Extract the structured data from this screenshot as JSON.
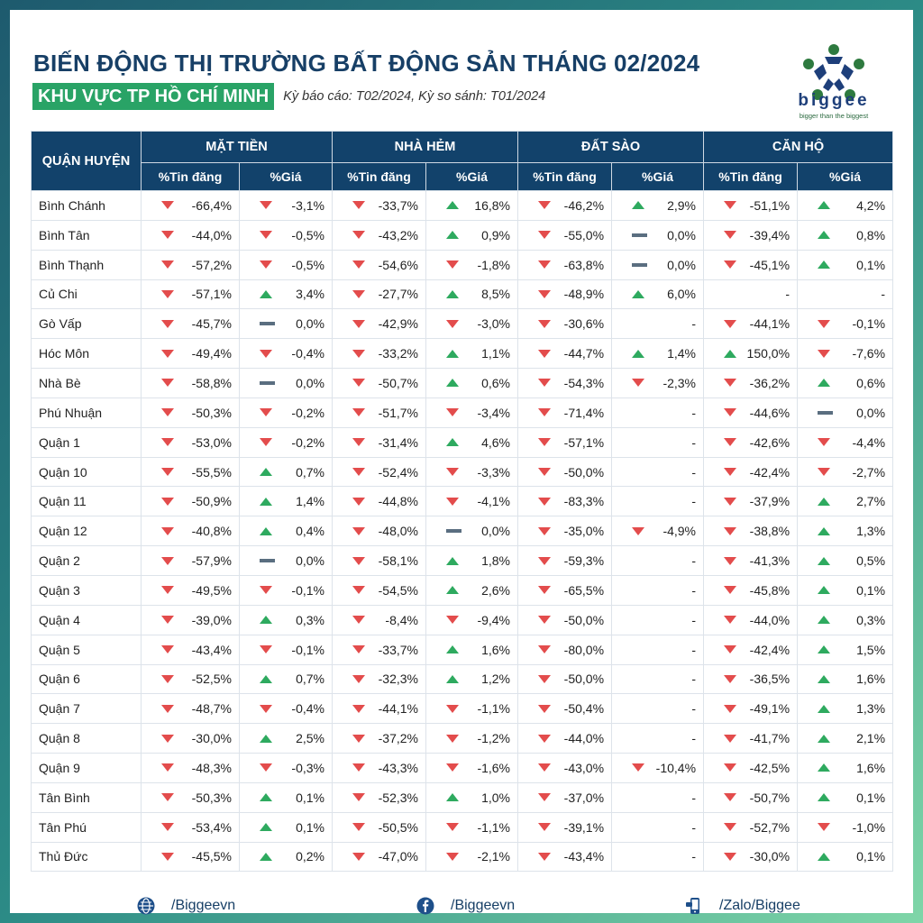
{
  "header": {
    "title": "BIẾN ĐỘNG THỊ TRƯỜNG BẤT ĐỘNG SẢN THÁNG 02/2024",
    "region": "KHU VỰC TP HỒ CHÍ MINH",
    "period": "Kỳ báo cáo: T02/2024, Kỳ so sánh: T01/2024"
  },
  "logo": {
    "word": "biggee",
    "tagline": "bigger than the biggest"
  },
  "colors": {
    "header_bg": "#12426b",
    "up": "#2eaa5f",
    "down": "#e34c4c",
    "flat": "#5a6e80",
    "badge": "#29a366"
  },
  "table": {
    "district_header": "QUẬN HUYỆN",
    "groups": [
      "MẶT TIỀN",
      "NHÀ HẺM",
      "ĐẤT SÀO",
      "CĂN HỘ"
    ],
    "sub_headers": [
      "%Tin đăng",
      "%Giá"
    ],
    "rows": [
      {
        "name": "Bình Chánh",
        "cells": [
          [
            "down",
            "-66,4%"
          ],
          [
            "down",
            "-3,1%"
          ],
          [
            "down",
            "-33,7%"
          ],
          [
            "up",
            "16,8%"
          ],
          [
            "down",
            "-46,2%"
          ],
          [
            "up",
            "2,9%"
          ],
          [
            "down",
            "-51,1%"
          ],
          [
            "up",
            "4,2%"
          ]
        ]
      },
      {
        "name": "Bình Tân",
        "cells": [
          [
            "down",
            "-44,0%"
          ],
          [
            "down",
            "-0,5%"
          ],
          [
            "down",
            "-43,2%"
          ],
          [
            "up",
            "0,9%"
          ],
          [
            "down",
            "-55,0%"
          ],
          [
            "flat",
            "0,0%"
          ],
          [
            "down",
            "-39,4%"
          ],
          [
            "up",
            "0,8%"
          ]
        ]
      },
      {
        "name": "Bình Thạnh",
        "cells": [
          [
            "down",
            "-57,2%"
          ],
          [
            "down",
            "-0,5%"
          ],
          [
            "down",
            "-54,6%"
          ],
          [
            "down",
            "-1,8%"
          ],
          [
            "down",
            "-63,8%"
          ],
          [
            "flat",
            "0,0%"
          ],
          [
            "down",
            "-45,1%"
          ],
          [
            "up",
            "0,1%"
          ]
        ]
      },
      {
        "name": "Củ Chi",
        "cells": [
          [
            "down",
            "-57,1%"
          ],
          [
            "up",
            "3,4%"
          ],
          [
            "down",
            "-27,7%"
          ],
          [
            "up",
            "8,5%"
          ],
          [
            "down",
            "-48,9%"
          ],
          [
            "up",
            "6,0%"
          ],
          [
            "none",
            "-"
          ],
          [
            "none",
            "-"
          ]
        ]
      },
      {
        "name": "Gò Vấp",
        "cells": [
          [
            "down",
            "-45,7%"
          ],
          [
            "flat",
            "0,0%"
          ],
          [
            "down",
            "-42,9%"
          ],
          [
            "down",
            "-3,0%"
          ],
          [
            "down",
            "-30,6%"
          ],
          [
            "none",
            "-"
          ],
          [
            "down",
            "-44,1%"
          ],
          [
            "down",
            "-0,1%"
          ]
        ]
      },
      {
        "name": "Hóc Môn",
        "cells": [
          [
            "down",
            "-49,4%"
          ],
          [
            "down",
            "-0,4%"
          ],
          [
            "down",
            "-33,2%"
          ],
          [
            "up",
            "1,1%"
          ],
          [
            "down",
            "-44,7%"
          ],
          [
            "up",
            "1,4%"
          ],
          [
            "up",
            "150,0%"
          ],
          [
            "down",
            "-7,6%"
          ]
        ]
      },
      {
        "name": "Nhà Bè",
        "cells": [
          [
            "down",
            "-58,8%"
          ],
          [
            "flat",
            "0,0%"
          ],
          [
            "down",
            "-50,7%"
          ],
          [
            "up",
            "0,6%"
          ],
          [
            "down",
            "-54,3%"
          ],
          [
            "down",
            "-2,3%"
          ],
          [
            "down",
            "-36,2%"
          ],
          [
            "up",
            "0,6%"
          ]
        ]
      },
      {
        "name": "Phú Nhuận",
        "cells": [
          [
            "down",
            "-50,3%"
          ],
          [
            "down",
            "-0,2%"
          ],
          [
            "down",
            "-51,7%"
          ],
          [
            "down",
            "-3,4%"
          ],
          [
            "down",
            "-71,4%"
          ],
          [
            "none",
            "-"
          ],
          [
            "down",
            "-44,6%"
          ],
          [
            "flat",
            "0,0%"
          ]
        ]
      },
      {
        "name": "Quận 1",
        "cells": [
          [
            "down",
            "-53,0%"
          ],
          [
            "down",
            "-0,2%"
          ],
          [
            "down",
            "-31,4%"
          ],
          [
            "up",
            "4,6%"
          ],
          [
            "down",
            "-57,1%"
          ],
          [
            "none",
            "-"
          ],
          [
            "down",
            "-42,6%"
          ],
          [
            "down",
            "-4,4%"
          ]
        ]
      },
      {
        "name": "Quận 10",
        "cells": [
          [
            "down",
            "-55,5%"
          ],
          [
            "up",
            "0,7%"
          ],
          [
            "down",
            "-52,4%"
          ],
          [
            "down",
            "-3,3%"
          ],
          [
            "down",
            "-50,0%"
          ],
          [
            "none",
            "-"
          ],
          [
            "down",
            "-42,4%"
          ],
          [
            "down",
            "-2,7%"
          ]
        ]
      },
      {
        "name": "Quận 11",
        "cells": [
          [
            "down",
            "-50,9%"
          ],
          [
            "up",
            "1,4%"
          ],
          [
            "down",
            "-44,8%"
          ],
          [
            "down",
            "-4,1%"
          ],
          [
            "down",
            "-83,3%"
          ],
          [
            "none",
            "-"
          ],
          [
            "down",
            "-37,9%"
          ],
          [
            "up",
            "2,7%"
          ]
        ]
      },
      {
        "name": "Quận 12",
        "cells": [
          [
            "down",
            "-40,8%"
          ],
          [
            "up",
            "0,4%"
          ],
          [
            "down",
            "-48,0%"
          ],
          [
            "flat",
            "0,0%"
          ],
          [
            "down",
            "-35,0%"
          ],
          [
            "down",
            "-4,9%"
          ],
          [
            "down",
            "-38,8%"
          ],
          [
            "up",
            "1,3%"
          ]
        ]
      },
      {
        "name": "Quận 2",
        "cells": [
          [
            "down",
            "-57,9%"
          ],
          [
            "flat",
            "0,0%"
          ],
          [
            "down",
            "-58,1%"
          ],
          [
            "up",
            "1,8%"
          ],
          [
            "down",
            "-59,3%"
          ],
          [
            "none",
            "-"
          ],
          [
            "down",
            "-41,3%"
          ],
          [
            "up",
            "0,5%"
          ]
        ]
      },
      {
        "name": "Quận 3",
        "cells": [
          [
            "down",
            "-49,5%"
          ],
          [
            "down",
            "-0,1%"
          ],
          [
            "down",
            "-54,5%"
          ],
          [
            "up",
            "2,6%"
          ],
          [
            "down",
            "-65,5%"
          ],
          [
            "none",
            "-"
          ],
          [
            "down",
            "-45,8%"
          ],
          [
            "up",
            "0,1%"
          ]
        ]
      },
      {
        "name": "Quận 4",
        "cells": [
          [
            "down",
            "-39,0%"
          ],
          [
            "up",
            "0,3%"
          ],
          [
            "down",
            "-8,4%"
          ],
          [
            "down",
            "-9,4%"
          ],
          [
            "down",
            "-50,0%"
          ],
          [
            "none",
            "-"
          ],
          [
            "down",
            "-44,0%"
          ],
          [
            "up",
            "0,3%"
          ]
        ]
      },
      {
        "name": "Quận 5",
        "cells": [
          [
            "down",
            "-43,4%"
          ],
          [
            "down",
            "-0,1%"
          ],
          [
            "down",
            "-33,7%"
          ],
          [
            "up",
            "1,6%"
          ],
          [
            "down",
            "-80,0%"
          ],
          [
            "none",
            "-"
          ],
          [
            "down",
            "-42,4%"
          ],
          [
            "up",
            "1,5%"
          ]
        ]
      },
      {
        "name": "Quận 6",
        "cells": [
          [
            "down",
            "-52,5%"
          ],
          [
            "up",
            "0,7%"
          ],
          [
            "down",
            "-32,3%"
          ],
          [
            "up",
            "1,2%"
          ],
          [
            "down",
            "-50,0%"
          ],
          [
            "none",
            "-"
          ],
          [
            "down",
            "-36,5%"
          ],
          [
            "up",
            "1,6%"
          ]
        ]
      },
      {
        "name": "Quận 7",
        "cells": [
          [
            "down",
            "-48,7%"
          ],
          [
            "down",
            "-0,4%"
          ],
          [
            "down",
            "-44,1%"
          ],
          [
            "down",
            "-1,1%"
          ],
          [
            "down",
            "-50,4%"
          ],
          [
            "none",
            "-"
          ],
          [
            "down",
            "-49,1%"
          ],
          [
            "up",
            "1,3%"
          ]
        ]
      },
      {
        "name": "Quận 8",
        "cells": [
          [
            "down",
            "-30,0%"
          ],
          [
            "up",
            "2,5%"
          ],
          [
            "down",
            "-37,2%"
          ],
          [
            "down",
            "-1,2%"
          ],
          [
            "down",
            "-44,0%"
          ],
          [
            "none",
            "-"
          ],
          [
            "down",
            "-41,7%"
          ],
          [
            "up",
            "2,1%"
          ]
        ]
      },
      {
        "name": "Quận 9",
        "cells": [
          [
            "down",
            "-48,3%"
          ],
          [
            "down",
            "-0,3%"
          ],
          [
            "down",
            "-43,3%"
          ],
          [
            "down",
            "-1,6%"
          ],
          [
            "down",
            "-43,0%"
          ],
          [
            "down",
            "-10,4%"
          ],
          [
            "down",
            "-42,5%"
          ],
          [
            "up",
            "1,6%"
          ]
        ]
      },
      {
        "name": "Tân Bình",
        "cells": [
          [
            "down",
            "-50,3%"
          ],
          [
            "up",
            "0,1%"
          ],
          [
            "down",
            "-52,3%"
          ],
          [
            "up",
            "1,0%"
          ],
          [
            "down",
            "-37,0%"
          ],
          [
            "none",
            "-"
          ],
          [
            "down",
            "-50,7%"
          ],
          [
            "up",
            "0,1%"
          ]
        ]
      },
      {
        "name": "Tân Phú",
        "cells": [
          [
            "down",
            "-53,4%"
          ],
          [
            "up",
            "0,1%"
          ],
          [
            "down",
            "-50,5%"
          ],
          [
            "down",
            "-1,1%"
          ],
          [
            "down",
            "-39,1%"
          ],
          [
            "none",
            "-"
          ],
          [
            "down",
            "-52,7%"
          ],
          [
            "down",
            "-1,0%"
          ]
        ]
      },
      {
        "name": "Thủ Đức",
        "cells": [
          [
            "down",
            "-45,5%"
          ],
          [
            "up",
            "0,2%"
          ],
          [
            "down",
            "-47,0%"
          ],
          [
            "down",
            "-2,1%"
          ],
          [
            "down",
            "-43,4%"
          ],
          [
            "none",
            "-"
          ],
          [
            "down",
            "-30,0%"
          ],
          [
            "up",
            "0,1%"
          ]
        ]
      }
    ]
  },
  "footer": {
    "website": "/Biggeevn",
    "facebook": "/Biggeevn",
    "zalo": "/Zalo/Biggee"
  }
}
